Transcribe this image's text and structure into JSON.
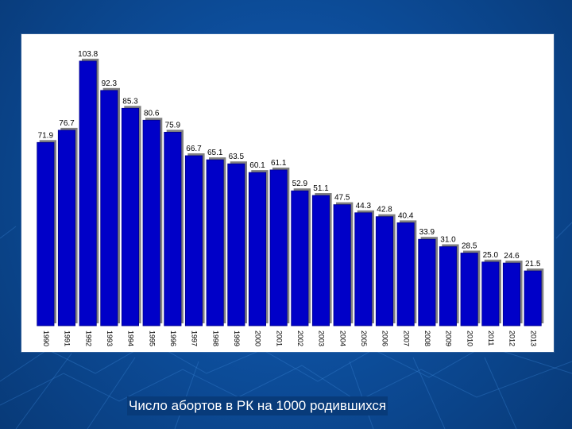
{
  "caption": "Число абортов в РК на 1000 родившихся",
  "colors": {
    "background": "#0d4e9c",
    "panel": "#ffffff",
    "bar": "#0000c8",
    "bar_edge": "#00008a",
    "bar_shadow": "#808080",
    "label": "#000000"
  },
  "chart_data": {
    "type": "bar",
    "title": "",
    "xlabel": "",
    "ylabel": "",
    "ylim": [
      0,
      110
    ],
    "grid": false,
    "legend": "none",
    "categories": [
      "1990",
      "1991",
      "1992",
      "1993",
      "1994",
      "1995",
      "1996",
      "1997",
      "1998",
      "1999",
      "2000",
      "2001",
      "2002",
      "2003",
      "2004",
      "2005",
      "2006",
      "2007",
      "2008",
      "2009",
      "2010",
      "2011",
      "2012",
      "2013"
    ],
    "values": [
      71.9,
      76.7,
      103.8,
      92.3,
      85.3,
      80.6,
      75.9,
      66.7,
      65.1,
      63.5,
      60.1,
      61.1,
      52.9,
      51.1,
      47.5,
      44.3,
      42.8,
      40.4,
      33.9,
      31.0,
      28.5,
      25.0,
      24.6,
      21.5
    ],
    "data_labels": [
      "71.9",
      "76.7",
      "103.8",
      "92.3",
      "85.3",
      "80.6",
      "75.9",
      "66.7",
      "65.1",
      "63.5",
      "60.1",
      "61.1",
      "52.9",
      "51.1",
      "47.5",
      "44.3",
      "42.8",
      "40.4",
      "33.9",
      "31.0",
      "28.5",
      "25.0",
      "24.6",
      "21.5"
    ]
  }
}
